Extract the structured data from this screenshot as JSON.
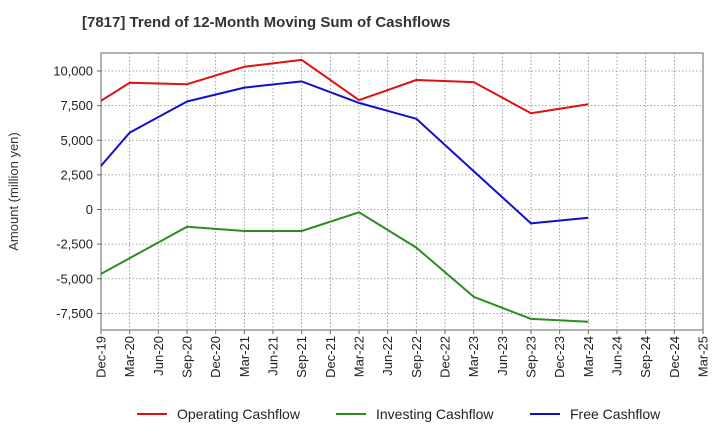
{
  "chart_data": {
    "type": "line",
    "title": "[7817]  Trend of 12-Month Moving Sum of Cashflows",
    "xlabel": "",
    "ylabel": "Amount (million yen)",
    "categories": [
      "Dec-19",
      "Mar-20",
      "Jun-20",
      "Sep-20",
      "Dec-20",
      "Mar-21",
      "Jun-21",
      "Sep-21",
      "Dec-21",
      "Mar-22",
      "Jun-22",
      "Sep-22",
      "Dec-22",
      "Mar-23",
      "Jun-23",
      "Sep-23",
      "Dec-23",
      "Mar-24",
      "Jun-24",
      "Sep-24",
      "Dec-24",
      "Mar-25"
    ],
    "ylim": [
      -8700,
      11300
    ],
    "yticks": [
      10000,
      7500,
      5000,
      2500,
      0,
      -2500,
      -5000,
      -7500
    ],
    "ytick_labels": [
      "10,000",
      "7,500",
      "5,000",
      "2,500",
      "0",
      "-2,500",
      "-5,000",
      "-7,500"
    ],
    "grid": true,
    "legend_position": "bottom",
    "series": [
      {
        "name": "Operating Cashflow",
        "color": "#dd1111",
        "values": [
          7850,
          9150,
          null,
          9050,
          null,
          10300,
          null,
          10800,
          null,
          7900,
          null,
          9350,
          null,
          9200,
          null,
          6950,
          null,
          7600,
          null,
          null,
          null,
          null
        ]
      },
      {
        "name": "Investing Cashflow",
        "color": "#2e8b22",
        "values": [
          -4650,
          null,
          null,
          -1250,
          null,
          -1550,
          null,
          -1550,
          null,
          -200,
          null,
          -2750,
          null,
          -6300,
          null,
          -7900,
          null,
          -8100,
          null,
          null,
          null,
          null
        ]
      },
      {
        "name": "Free Cashflow",
        "color": "#1111cc",
        "values": [
          3150,
          5550,
          null,
          7800,
          null,
          8800,
          null,
          9250,
          null,
          7700,
          null,
          6550,
          null,
          null,
          null,
          -1000,
          null,
          -600,
          null,
          null,
          null,
          null
        ]
      }
    ]
  }
}
